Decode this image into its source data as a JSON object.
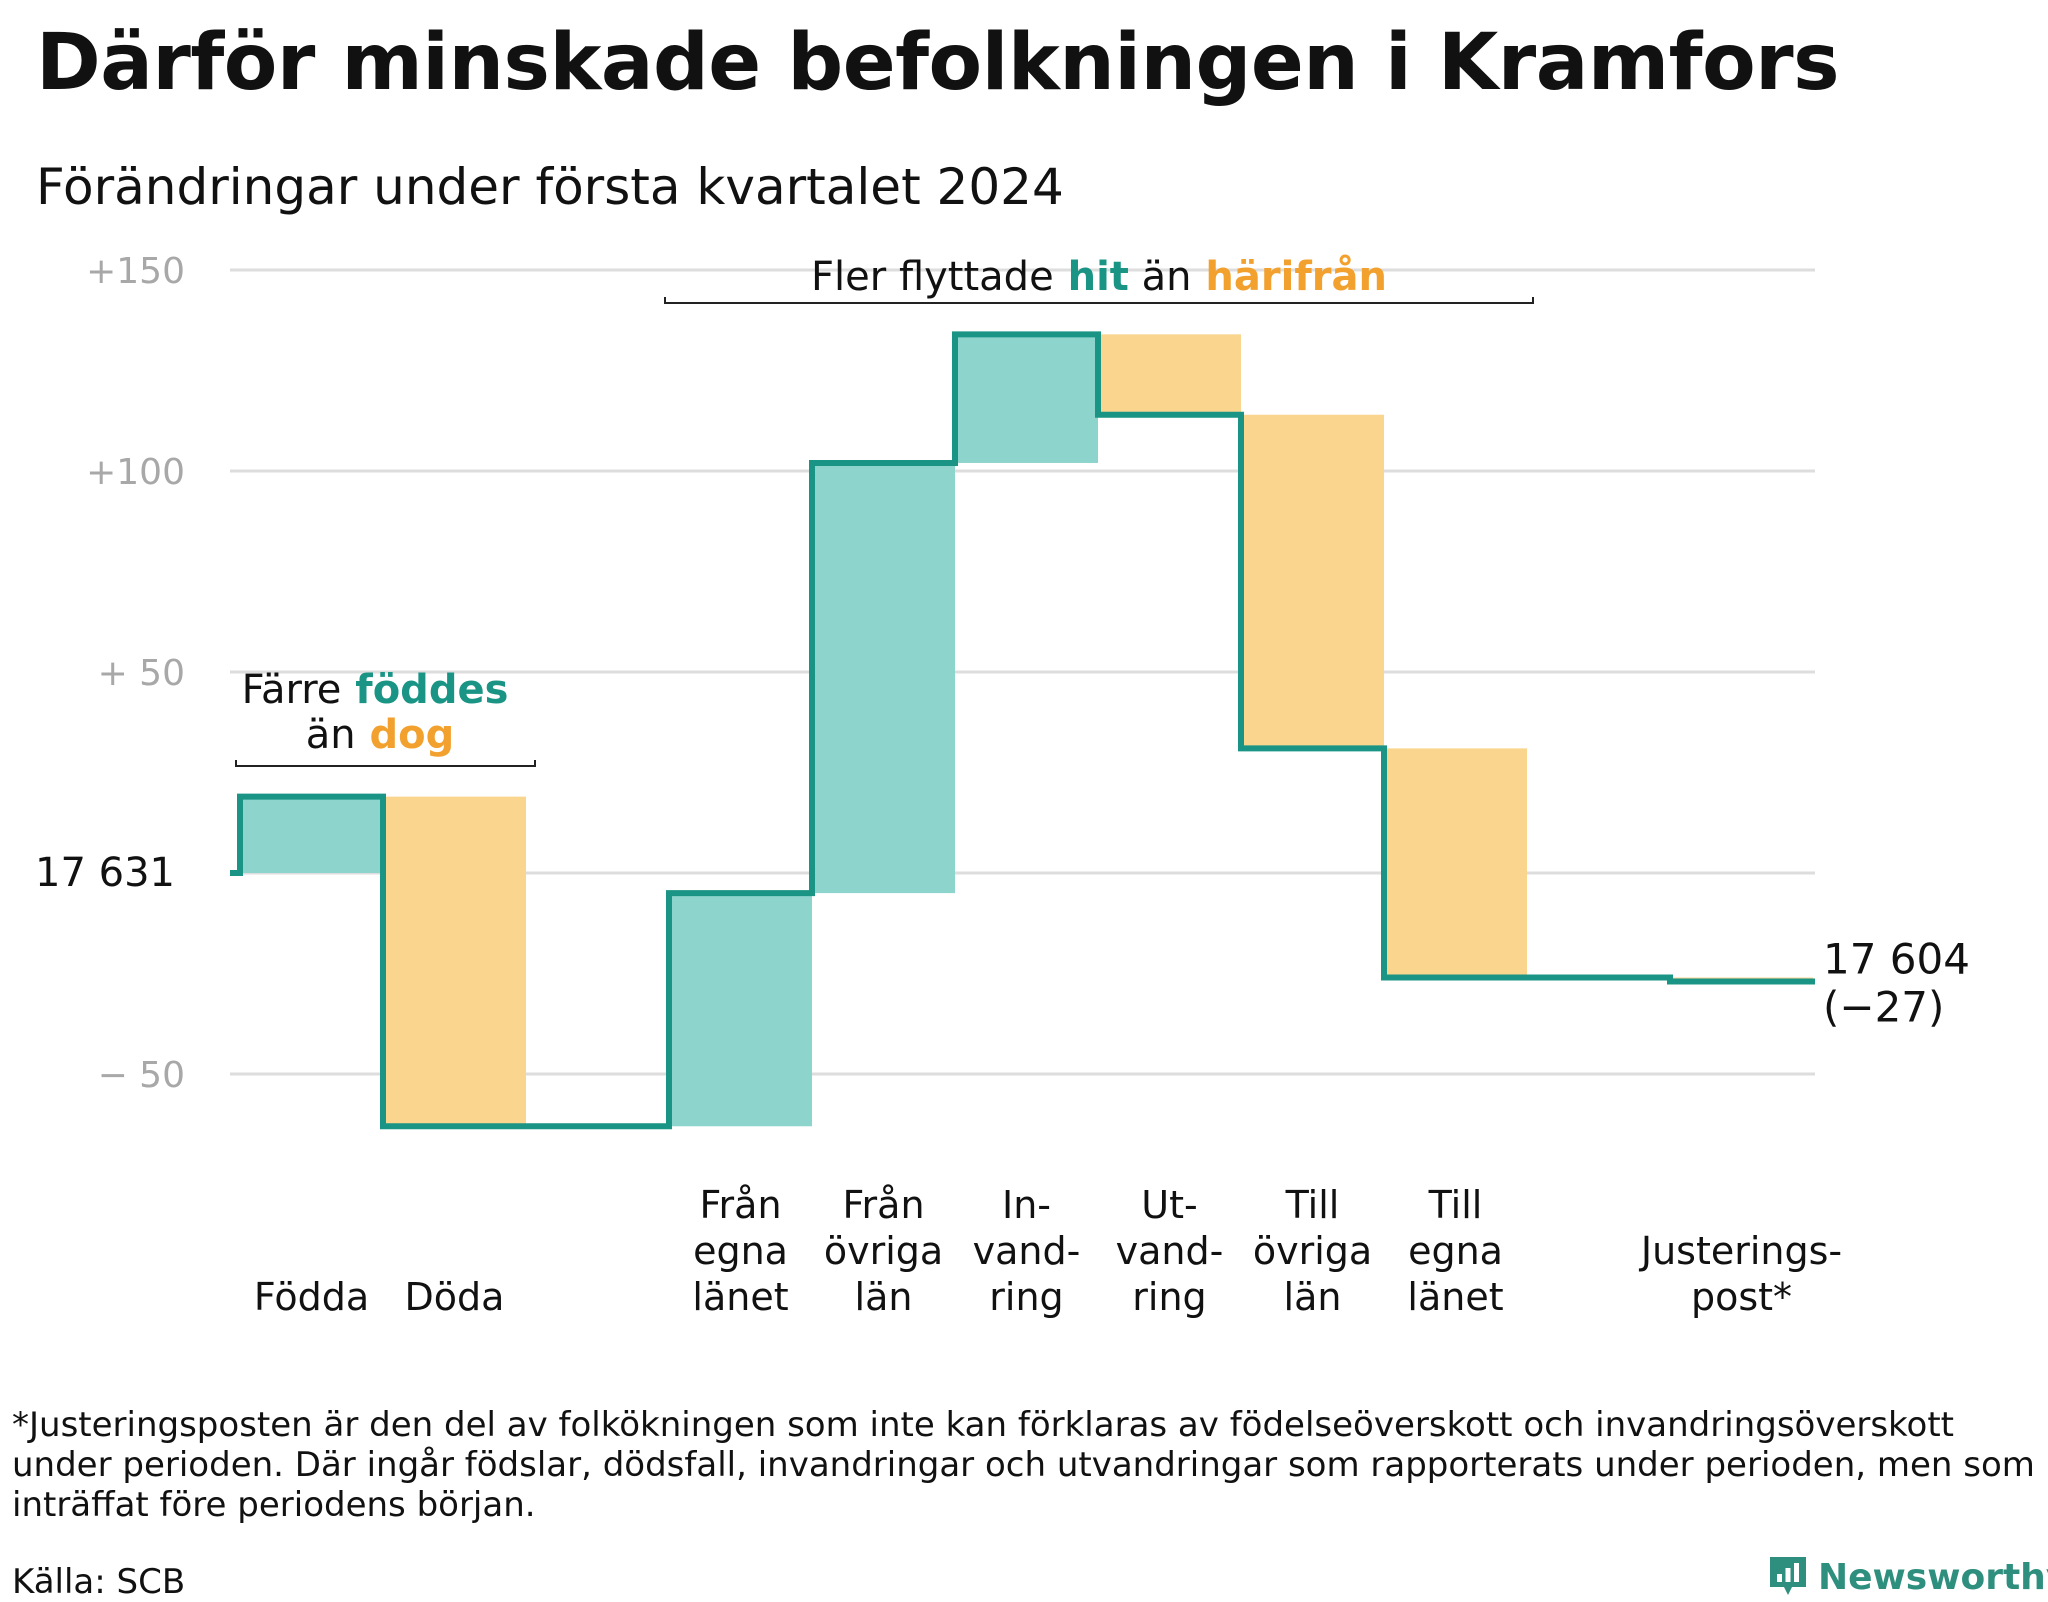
{
  "title": "Därför minskade befolkningen i Kramfors",
  "subtitle": "Förändringar under första kvartalet 2024",
  "colors": {
    "increase_fill": "#8dd4cc",
    "decrease_fill": "#f9d58e",
    "line": "#1a9484",
    "grid": "#dddddd",
    "axis_text": "#a8a8a8",
    "hit_text": "#1a9484",
    "dog_text": "#f2a12f"
  },
  "annotations": {
    "births": {
      "prefix": "Färre",
      "highlight1": "föddes",
      "middle": "än",
      "highlight2": "dog"
    },
    "migration": {
      "prefix": "Fler flyttade",
      "highlight1": "hit",
      "middle": "än",
      "highlight2": "härifrån"
    }
  },
  "start_label": "17  631",
  "end_label": {
    "line1": "17 604",
    "line2": "(−27)"
  },
  "chart_data": {
    "type": "waterfall",
    "title": "Därför minskade befolkningen i Kramfors",
    "subtitle": "Förändringar under första kvartalet 2024",
    "baseline_population": 17631,
    "final_population": 17604,
    "net_change": -27,
    "yticks": [
      {
        "value": 150,
        "label": "+150"
      },
      {
        "value": 100,
        "label": "+100"
      },
      {
        "value": 50,
        "label": "+  50"
      },
      {
        "value": -50,
        "label": "−  50"
      }
    ],
    "ylim": [
      -62,
      155
    ],
    "grid": true,
    "categories": [
      {
        "label": [
          "Födda"
        ],
        "value": 19,
        "direction": "increase"
      },
      {
        "label": [
          "Döda"
        ],
        "value": -82,
        "direction": "decrease"
      },
      {
        "label": [
          ""
        ],
        "value": 0,
        "direction": "none"
      },
      {
        "label": [
          "Från",
          "egna",
          "länet"
        ],
        "value": 58,
        "direction": "increase"
      },
      {
        "label": [
          "Från",
          "övriga",
          "län"
        ],
        "value": 107,
        "direction": "increase"
      },
      {
        "label": [
          "In-",
          "vand-",
          "ring"
        ],
        "value": 32,
        "direction": "increase"
      },
      {
        "label": [
          "Ut-",
          "vand-",
          "ring"
        ],
        "value": -20,
        "direction": "decrease"
      },
      {
        "label": [
          "Till",
          "övriga",
          "län"
        ],
        "value": -83,
        "direction": "decrease"
      },
      {
        "label": [
          "Till",
          "egna",
          "länet"
        ],
        "value": -57,
        "direction": "decrease"
      },
      {
        "label": [
          ""
        ],
        "value": 0,
        "direction": "none"
      },
      {
        "label": [
          "Justerings-",
          "post*"
        ],
        "value": -1,
        "direction": "decrease"
      }
    ]
  },
  "footnote": "*Justeringsposten är den del av folkökningen som inte kan förklaras av födelseöverskott och invandringsöverskott under perioden. Där ingår födslar, dödsfall, invandringar och utvandringar som rapporterats under perioden, men som inträffat före periodens början.",
  "source": "Källa: SCB",
  "brand": {
    "name": "Newsworthy",
    "icon": "newsworthy-logo-icon"
  }
}
